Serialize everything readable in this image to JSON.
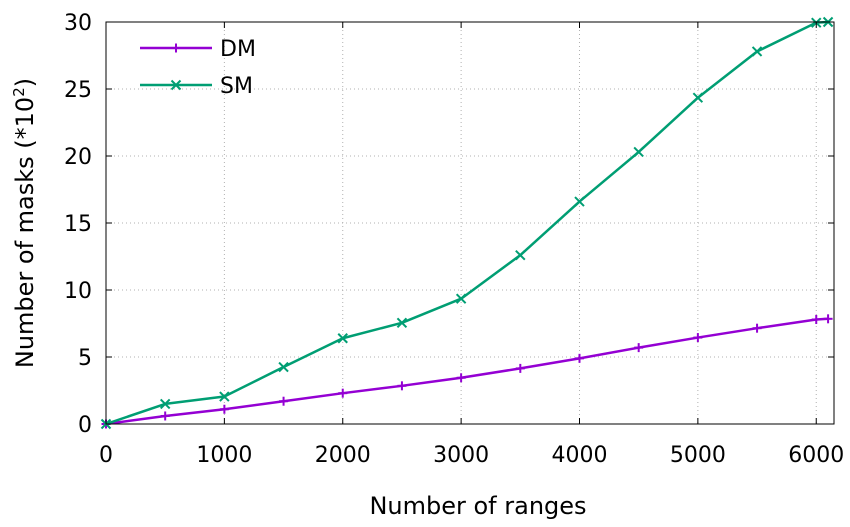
{
  "chart_data": {
    "type": "line",
    "title": "",
    "xlabel": "Number of ranges",
    "ylabel_main": "Number of masks (*10",
    "ylabel_sup": "2",
    "ylabel_close": ")",
    "xlim": [
      0,
      6150
    ],
    "ylim": [
      0,
      30
    ],
    "x_ticks": [
      0,
      1000,
      2000,
      3000,
      4000,
      5000,
      6000
    ],
    "y_ticks": [
      0,
      5,
      10,
      15,
      20,
      25,
      30
    ],
    "grid": true,
    "legend_position": "top-left",
    "series": [
      {
        "name": "DM",
        "color": "#9400d3",
        "marker": "plus",
        "x": [
          0,
          500,
          1000,
          1500,
          2000,
          2500,
          3000,
          3500,
          4000,
          4500,
          5000,
          5500,
          6000,
          6100
        ],
        "y": [
          0,
          0.6,
          1.1,
          1.7,
          2.3,
          2.85,
          3.45,
          4.15,
          4.9,
          5.7,
          6.45,
          7.15,
          7.8,
          7.85
        ]
      },
      {
        "name": "SM",
        "color": "#009e73",
        "marker": "cross",
        "x": [
          0,
          500,
          1000,
          1500,
          2000,
          2500,
          3000,
          3500,
          4000,
          4500,
          5000,
          5500,
          6000,
          6100
        ],
        "y": [
          0,
          1.5,
          2.05,
          4.25,
          6.4,
          7.55,
          9.35,
          12.6,
          16.6,
          20.3,
          24.35,
          27.8,
          29.95,
          30
        ]
      }
    ]
  }
}
